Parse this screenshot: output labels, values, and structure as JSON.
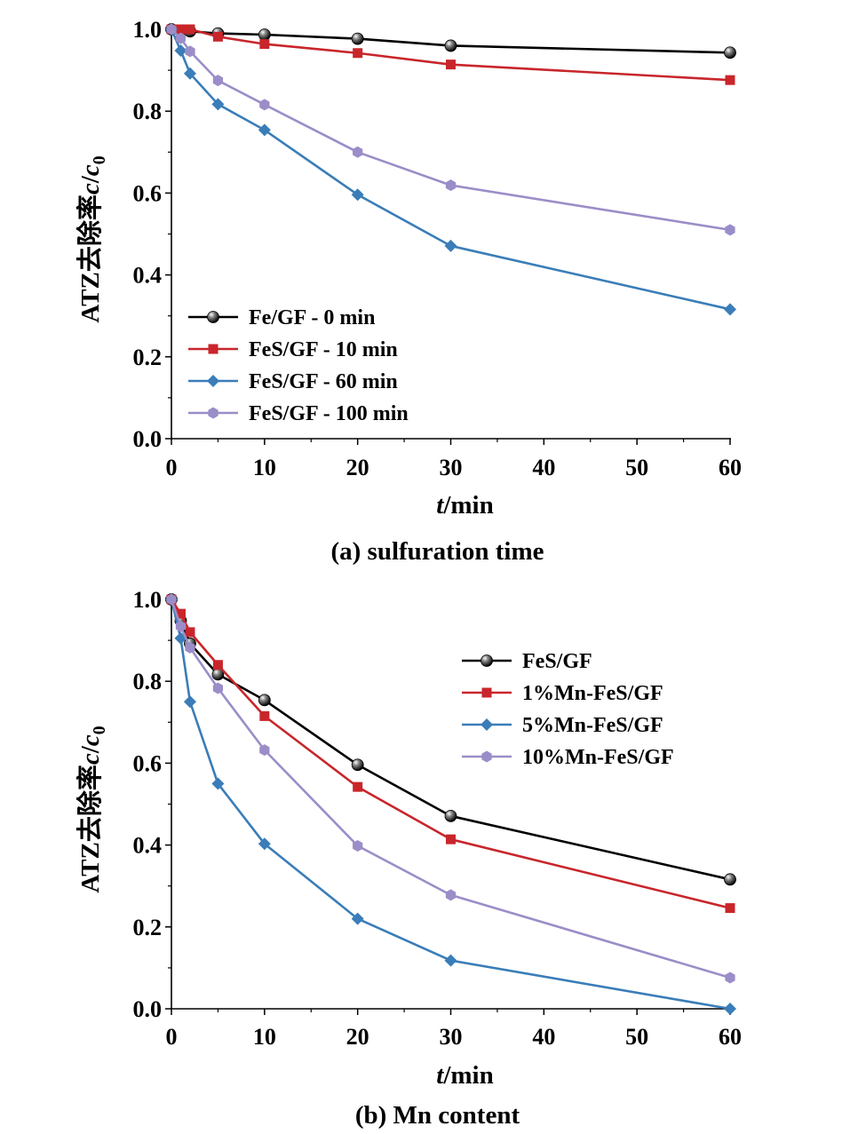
{
  "chart_data": [
    {
      "type": "line",
      "caption": "(a) sulfuration time",
      "xlabel_italic": "t",
      "xlabel_unit": "/min",
      "ylabel_prefix": "ATZ去除率",
      "ylabel_c": "c",
      "ylabel_slash": "/",
      "ylabel_c0": "c",
      "ylabel_sub": "0",
      "xlim": [
        0,
        60
      ],
      "ylim": [
        0,
        1.0
      ],
      "xticks": [
        "0",
        "10",
        "20",
        "30",
        "40",
        "50",
        "60"
      ],
      "yticks": [
        "0.0",
        "0.2",
        "0.4",
        "0.6",
        "0.8",
        "1.0"
      ],
      "legend_position": "bottom-left",
      "x": [
        0,
        1,
        2,
        5,
        10,
        20,
        30,
        60
      ],
      "series": [
        {
          "name": "Fe/GF - 0 min",
          "marker": "circle",
          "color": "#000000",
          "values": [
            1.0,
            0.997,
            0.995,
            0.99,
            0.987,
            0.977,
            0.96,
            0.943
          ]
        },
        {
          "name": "FeS/GF - 10 min",
          "marker": "square",
          "color": "#c8262b",
          "values": [
            1.0,
            1.0,
            1.0,
            0.982,
            0.964,
            0.942,
            0.914,
            0.876
          ]
        },
        {
          "name": "FeS/GF - 60 min",
          "marker": "diamond",
          "color": "#3a7db8",
          "values": [
            1.0,
            0.948,
            0.892,
            0.817,
            0.754,
            0.596,
            0.471,
            0.316
          ]
        },
        {
          "name": "FeS/GF - 100 min",
          "marker": "hexagon",
          "color": "#9b8dc8",
          "values": [
            1.0,
            0.978,
            0.946,
            0.875,
            0.816,
            0.7,
            0.619,
            0.51
          ]
        }
      ]
    },
    {
      "type": "line",
      "caption": "(b) Mn content",
      "xlabel_italic": "t",
      "xlabel_unit": "/min",
      "ylabel_prefix": "ATZ去除率",
      "ylabel_c": "c",
      "ylabel_slash": "/",
      "ylabel_c0": "c",
      "ylabel_sub": "0",
      "xlim": [
        0,
        60
      ],
      "ylim": [
        0,
        1.0
      ],
      "xticks": [
        "0",
        "10",
        "20",
        "30",
        "40",
        "50",
        "60"
      ],
      "yticks": [
        "0.0",
        "0.2",
        "0.4",
        "0.6",
        "0.8",
        "1.0"
      ],
      "legend_position": "top-right",
      "x": [
        0,
        1,
        2,
        5,
        10,
        20,
        30,
        60
      ],
      "series": [
        {
          "name": "FeS/GF",
          "marker": "circle",
          "color": "#000000",
          "values": [
            1.0,
            0.948,
            0.892,
            0.817,
            0.754,
            0.596,
            0.471,
            0.316
          ]
        },
        {
          "name": "1%Mn-FeS/GF",
          "marker": "square",
          "color": "#c8262b",
          "values": [
            1.0,
            0.965,
            0.92,
            0.84,
            0.715,
            0.542,
            0.414,
            0.246
          ]
        },
        {
          "name": "5%Mn-FeS/GF",
          "marker": "diamond",
          "color": "#3a7db8",
          "values": [
            1.0,
            0.905,
            0.75,
            0.55,
            0.403,
            0.22,
            0.118,
            0.0
          ]
        },
        {
          "name": "10%Mn-FeS/GF",
          "marker": "hexagon",
          "color": "#9b8dc8",
          "values": [
            1.0,
            0.934,
            0.882,
            0.783,
            0.632,
            0.398,
            0.278,
            0.076
          ]
        }
      ]
    }
  ]
}
